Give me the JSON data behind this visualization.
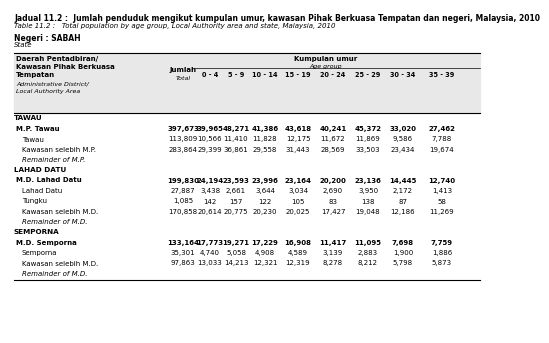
{
  "title_ms": "Jadual 11.2 :  Jumlah penduduk mengikut kumpulan umur, kawasan Pihak Berkuasa Tempatan dan negeri, Malaysia, 2010",
  "title_en": "Table 11.2 :   Total population by age group, Local Authority area and state, Malaysia, 2010",
  "negeri_ms": "Negeri : SABAH",
  "negeri_en": "State",
  "age_groups": [
    "0 - 4",
    "5 - 9",
    "10 - 14",
    "15 - 19",
    "20 - 24",
    "25 - 29",
    "30 - 34",
    "35 - 39"
  ],
  "sections": [
    {
      "section": "TAWAU",
      "rows": [
        {
          "name": "M.P. Tawau",
          "bold": true,
          "italic": false,
          "indent": false,
          "total": "397,673",
          "values": [
            "39,965",
            "48,271",
            "41,386",
            "43,618",
            "40,241",
            "45,372",
            "33,020",
            "27,462"
          ]
        },
        {
          "name": "Tawau",
          "bold": false,
          "italic": false,
          "indent": true,
          "total": "113,809",
          "values": [
            "10,566",
            "11,410",
            "11,828",
            "12,175",
            "11,672",
            "11,869",
            "9,586",
            "7,788"
          ]
        },
        {
          "name": "Kawasan selebih M.P.",
          "bold": false,
          "italic": false,
          "indent": true,
          "total": "283,864",
          "values": [
            "29,399",
            "36,861",
            "29,558",
            "31,443",
            "28,569",
            "33,503",
            "23,434",
            "19,674"
          ]
        },
        {
          "name": "Remainder of M.P.",
          "bold": false,
          "italic": true,
          "indent": true,
          "total": "",
          "values": [
            "",
            "",
            "",
            "",
            "",
            "",
            "",
            ""
          ]
        }
      ]
    },
    {
      "section": "LAHAD DATU",
      "rows": [
        {
          "name": "M.D. Lahad Datu",
          "bold": true,
          "italic": false,
          "indent": false,
          "total": "199,830",
          "values": [
            "24,194",
            "23,593",
            "23,996",
            "23,164",
            "20,200",
            "23,136",
            "14,445",
            "12,740"
          ]
        },
        {
          "name": "Lahad Datu",
          "bold": false,
          "italic": false,
          "indent": true,
          "total": "27,887",
          "values": [
            "3,438",
            "2,661",
            "3,644",
            "3,034",
            "2,690",
            "3,950",
            "2,172",
            "1,413"
          ]
        },
        {
          "name": "Tungku",
          "bold": false,
          "italic": false,
          "indent": true,
          "total": "1,085",
          "values": [
            "142",
            "157",
            "122",
            "105",
            "83",
            "138",
            "87",
            "58"
          ]
        },
        {
          "name": "Kawasan selebih M.D.",
          "bold": false,
          "italic": false,
          "indent": true,
          "total": "170,858",
          "values": [
            "20,614",
            "20,775",
            "20,230",
            "20,025",
            "17,427",
            "19,048",
            "12,186",
            "11,269"
          ]
        },
        {
          "name": "Remainder of M.D.",
          "bold": false,
          "italic": true,
          "indent": true,
          "total": "",
          "values": [
            "",
            "",
            "",
            "",
            "",
            "",
            "",
            ""
          ]
        }
      ]
    },
    {
      "section": "SEMPORNA",
      "rows": [
        {
          "name": "M.D. Semporna",
          "bold": true,
          "italic": false,
          "indent": false,
          "total": "133,164",
          "values": [
            "17,773",
            "19,271",
            "17,229",
            "16,908",
            "11,417",
            "11,095",
            "7,698",
            "7,759"
          ]
        },
        {
          "name": "Semporna",
          "bold": false,
          "italic": false,
          "indent": true,
          "total": "35,301",
          "values": [
            "4,740",
            "5,058",
            "4,908",
            "4,589",
            "3,139",
            "2,883",
            "1,900",
            "1,886"
          ]
        },
        {
          "name": "Kawasan selebih M.D.",
          "bold": false,
          "italic": false,
          "indent": true,
          "total": "97,863",
          "values": [
            "13,033",
            "14,213",
            "12,321",
            "12,319",
            "8,278",
            "8,212",
            "5,798",
            "5,873"
          ]
        },
        {
          "name": "Remainder of M.D.",
          "bold": false,
          "italic": true,
          "indent": true,
          "total": "",
          "values": [
            "",
            "",
            "",
            "",
            "",
            "",
            "",
            ""
          ]
        }
      ]
    }
  ],
  "bg_color": "#ffffff",
  "header_bg": "#e8e8e8",
  "fs_title": 5.5,
  "fs_title_en": 5.0,
  "fs_header": 5.0,
  "fs_data": 5.0,
  "fs_section": 5.2
}
